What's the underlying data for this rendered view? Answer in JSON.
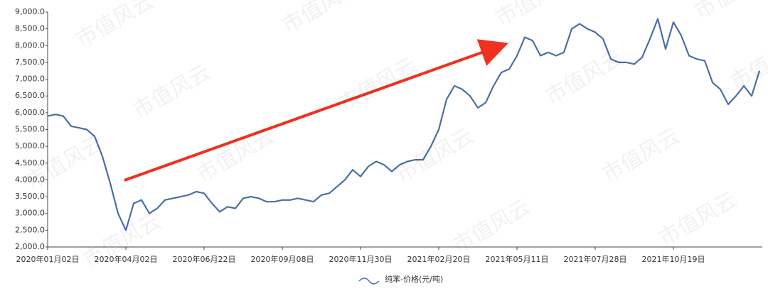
{
  "chart_data": {
    "type": "line",
    "watermark": "市值风云",
    "categories": [
      "2020年01月02日",
      null,
      null,
      null,
      null,
      null,
      null,
      null,
      null,
      null,
      "2020年04月02日",
      null,
      null,
      null,
      null,
      null,
      null,
      null,
      null,
      null,
      "2020年06月22日",
      null,
      null,
      null,
      null,
      null,
      null,
      null,
      null,
      null,
      "2020年09月08日",
      null,
      null,
      null,
      null,
      null,
      null,
      null,
      null,
      null,
      "2020年11月30日",
      null,
      null,
      null,
      null,
      null,
      null,
      null,
      null,
      null,
      "2021年02月20日",
      null,
      null,
      null,
      null,
      null,
      null,
      null,
      null,
      null,
      "2021年05月11日",
      null,
      null,
      null,
      null,
      null,
      null,
      null,
      null,
      null,
      "2021年07月28日",
      null,
      null,
      null,
      null,
      null,
      null,
      null,
      null,
      null,
      "2021年10月19日",
      null,
      null,
      null,
      null,
      null,
      null,
      null,
      null,
      null,
      null,
      null
    ],
    "series": [
      {
        "name": "纯苯-价格(元/吨)",
        "color": "#4a6fa5",
        "values": [
          5900,
          5950,
          5900,
          5600,
          5550,
          5500,
          5300,
          4700,
          3900,
          3000,
          2500,
          3300,
          3400,
          3000,
          3150,
          3400,
          3450,
          3500,
          3550,
          3650,
          3600,
          3300,
          3050,
          3200,
          3150,
          3450,
          3500,
          3450,
          3350,
          3350,
          3400,
          3400,
          3450,
          3400,
          3350,
          3550,
          3600,
          3800,
          4000,
          4300,
          4100,
          4400,
          4550,
          4450,
          4250,
          4450,
          4550,
          4600,
          4600,
          5000,
          5500,
          6400,
          6800,
          6700,
          6500,
          6150,
          6300,
          6800,
          7200,
          7300,
          7700,
          8250,
          8150,
          7700,
          7800,
          7700,
          7800,
          8500,
          8650,
          8500,
          8400,
          8200,
          7600,
          7500,
          7500,
          7450,
          7650,
          8200,
          8800,
          7900,
          8700,
          8300,
          7700,
          7600,
          7550,
          6900,
          6700,
          6250,
          6500,
          6800,
          6500,
          7250
        ]
      }
    ],
    "ylim": [
      2000,
      9000
    ],
    "yticks": [
      {
        "value": 2000,
        "label": "2,000.0"
      },
      {
        "value": 2500,
        "label": "2,500.0"
      },
      {
        "value": 3000,
        "label": "3,000.0"
      },
      {
        "value": 3500,
        "label": "3,500.0"
      },
      {
        "value": 4000,
        "label": "4,000.0"
      },
      {
        "value": 4500,
        "label": "4,500.0"
      },
      {
        "value": 5000,
        "label": "5,000.0"
      },
      {
        "value": 5500,
        "label": "5,500.0"
      },
      {
        "value": 6000,
        "label": "6,000.0"
      },
      {
        "value": 6500,
        "label": "6,500.0"
      },
      {
        "value": 7000,
        "label": "7,000.0"
      },
      {
        "value": 7500,
        "label": "7,500.0"
      },
      {
        "value": 8000,
        "label": "8,000.0"
      },
      {
        "value": 8500,
        "label": "8,500.0"
      },
      {
        "value": 9000,
        "label": "9,000.0"
      }
    ],
    "grid": false
  }
}
